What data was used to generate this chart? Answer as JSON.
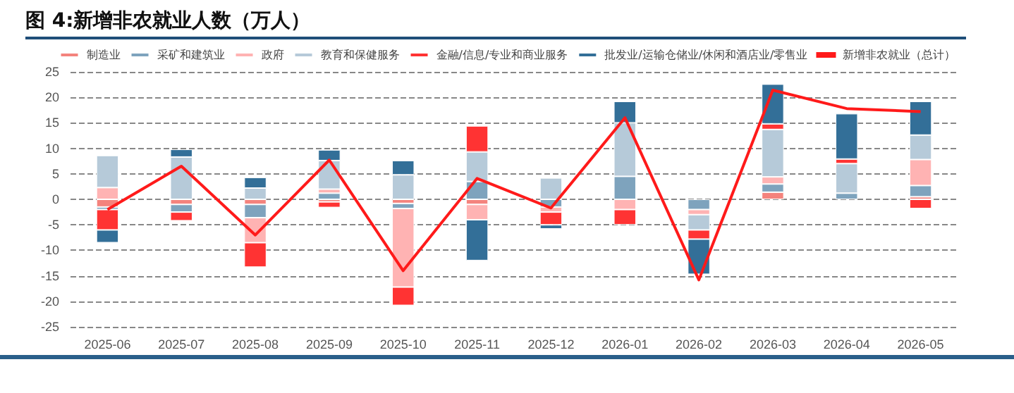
{
  "chart_data": {
    "type": "bar",
    "title": "图 4:新增非农就业人数（万人）",
    "stacked": true,
    "categories": [
      "2025-06",
      "2025-07",
      "2025-08",
      "2025-09",
      "2025-10",
      "2025-11",
      "2025-12",
      "2026-01",
      "2026-02",
      "2026-03",
      "2026-04",
      "2026-05"
    ],
    "series": [
      {
        "name": "制造业",
        "color": "#f4837d",
        "values": [
          -1.5,
          -1,
          -1,
          -0.5,
          -0.8,
          -1,
          null,
          null,
          null,
          1.4,
          null,
          0.5
        ]
      },
      {
        "name": "采矿和建筑业",
        "color": "#7ea3bd",
        "values": [
          -0.5,
          -1.5,
          -2.6,
          1.2,
          -1,
          3.5,
          -1.5,
          4.5,
          -2,
          1.6,
          1.2,
          2.2
        ]
      },
      {
        "name": "政府",
        "color": "#ffb3b3",
        "values": [
          2.3,
          null,
          -4.9,
          0.8,
          -15.4,
          -3,
          -1,
          -2,
          -1,
          1.4,
          null,
          5.1
        ]
      },
      {
        "name": "教育和保健服务",
        "color": "#b6cad9",
        "values": [
          6.3,
          8.3,
          2.2,
          5.6,
          4.8,
          5.8,
          4.2,
          10.5,
          -3,
          9.3,
          5.8,
          4.8
        ]
      },
      {
        "name": "金融/信息/专业和商业服务",
        "color": "#ff3333",
        "values": [
          -4,
          -1.7,
          -4.8,
          -1.1,
          -3.6,
          5.1,
          -2.5,
          -3,
          -1.8,
          1.1,
          0.9,
          -1.8
        ]
      },
      {
        "name": "批发业/运输仓储业/休闲和酒店业/零售业",
        "color": "#336f98",
        "values": [
          -2.5,
          1.5,
          2.1,
          2.1,
          2.8,
          -8,
          -0.8,
          4.2,
          -6.9,
          7.8,
          8.9,
          6.6
        ]
      },
      {
        "name": "新增非农就业（总计）",
        "type": "line",
        "color": "#ff1a1a",
        "values": [
          -2,
          6.5,
          -7,
          7.7,
          -14,
          4.1,
          -1.7,
          16,
          -15.8,
          21.4,
          17.8,
          17.2
        ]
      }
    ],
    "ylim": [
      -25,
      25
    ],
    "yticks": [
      -25,
      -20,
      -15,
      -10,
      -5,
      0,
      5,
      10,
      15,
      20,
      25
    ],
    "grid": "y",
    "legend": "top",
    "marker": "none"
  }
}
